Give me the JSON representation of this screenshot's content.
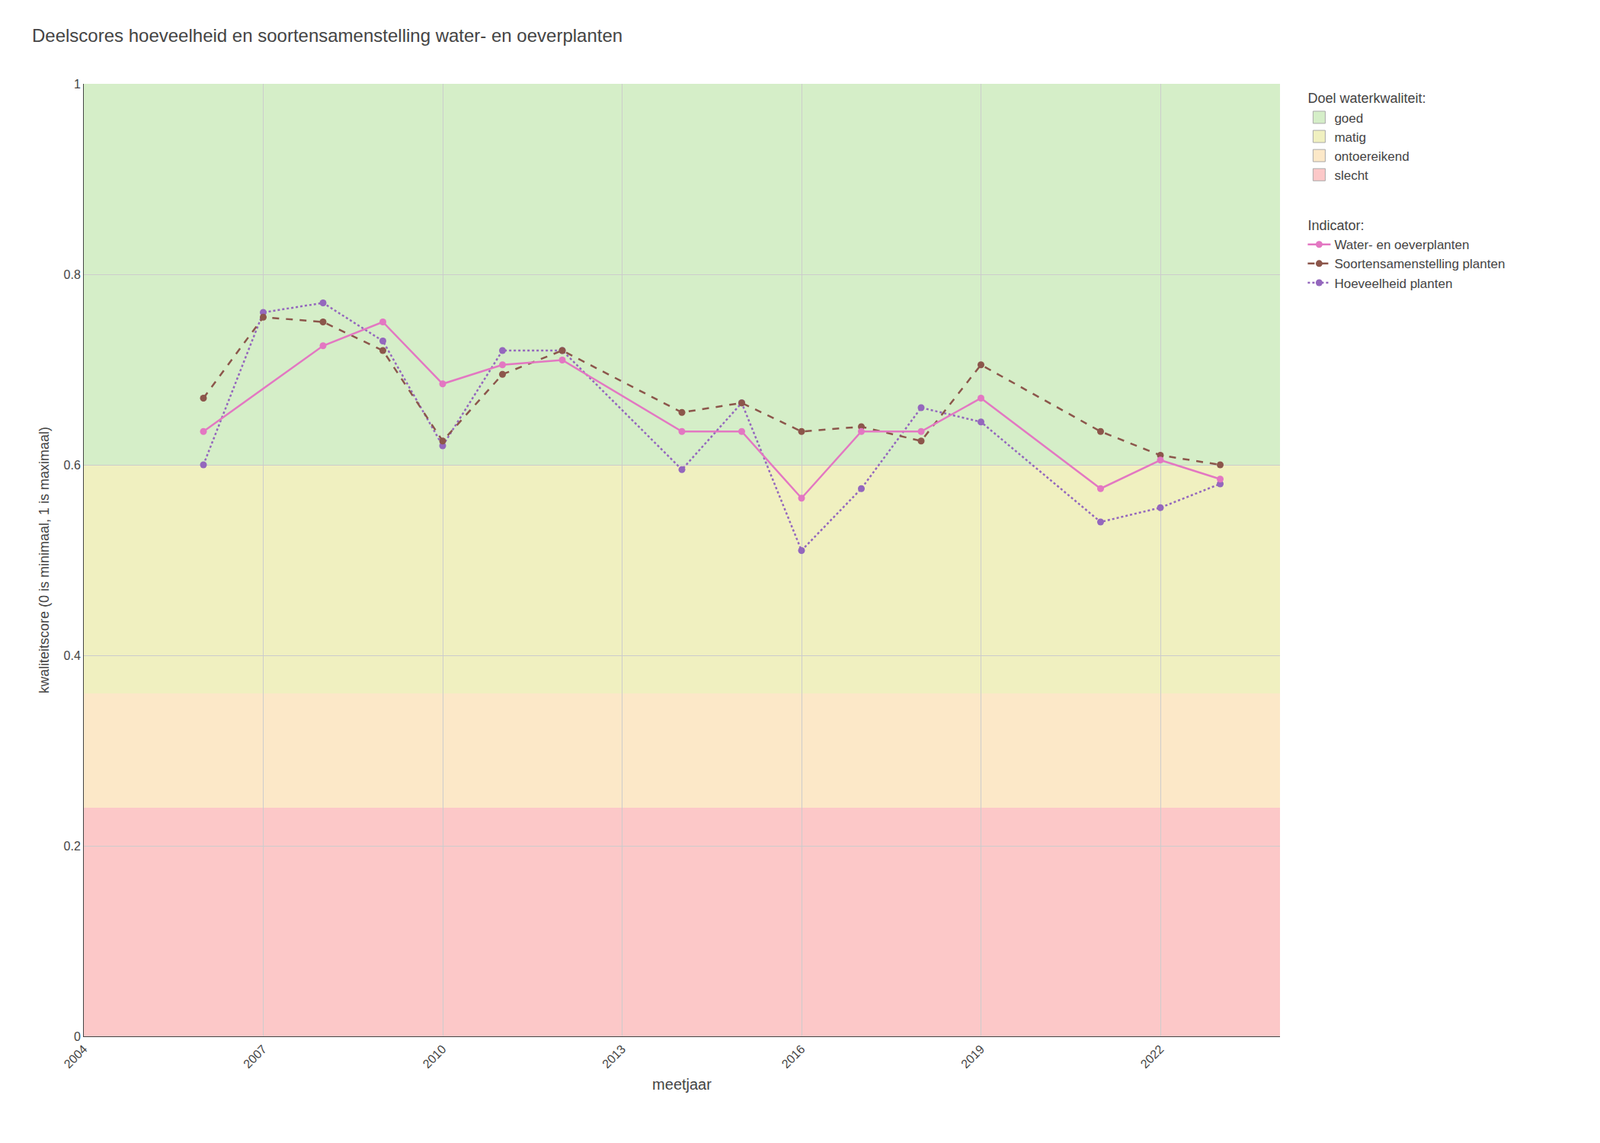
{
  "chart_data": {
    "type": "line",
    "title": "Deelscores hoeveelheid en soortensamenstelling water- en oeverplanten",
    "x_label": "meetjaar",
    "y_label": "kwaliteitscore (0 is minimaal, 1 is maximaal)",
    "xlim": [
      2004,
      2024
    ],
    "ylim": [
      0,
      1
    ],
    "xticks": [
      2004,
      2007,
      2010,
      2013,
      2016,
      2019,
      2022
    ],
    "yticks": [
      0,
      0.2,
      0.4,
      0.6,
      0.8,
      1
    ],
    "grid": true,
    "bands_title": "Doel waterkwaliteit:",
    "bands": [
      {
        "name": "goed",
        "color": "#d5eec8",
        "ymin": 0.6,
        "ymax": 1.0
      },
      {
        "name": "matig",
        "color": "#f0f0c0",
        "ymin": 0.36,
        "ymax": 0.6
      },
      {
        "name": "ontoereikend",
        "color": "#fce8c8",
        "ymin": 0.24,
        "ymax": 0.36
      },
      {
        "name": "slecht",
        "color": "#fcc8c8",
        "ymin": 0.0,
        "ymax": 0.24
      }
    ],
    "series_title": "Indicator:",
    "series": [
      {
        "name": "Hoeveelheid planten",
        "line_style": "dot",
        "marker": "circle",
        "x": [
          2006,
          2007,
          2008,
          2009,
          2010,
          2011,
          2012,
          2014,
          2015,
          2016,
          2017,
          2018,
          2019,
          2021,
          2022,
          2023
        ],
        "values": [
          0.6,
          0.76,
          0.77,
          0.73,
          0.62,
          0.72,
          0.72,
          0.595,
          0.665,
          0.51,
          0.575,
          0.66,
          0.645,
          0.54,
          0.555,
          0.58
        ]
      },
      {
        "name": "Soortensamenstelling planten",
        "line_style": "dash",
        "marker": "circle",
        "x": [
          2006,
          2007,
          2008,
          2009,
          2010,
          2011,
          2012,
          2014,
          2015,
          2016,
          2017,
          2018,
          2019,
          2021,
          2022,
          2023
        ],
        "values": [
          0.67,
          0.755,
          0.75,
          0.72,
          0.625,
          0.695,
          0.72,
          0.655,
          0.665,
          0.635,
          0.64,
          0.625,
          0.705,
          0.635,
          0.61,
          0.6
        ]
      },
      {
        "name": "Water- en oeverplanten",
        "line_style": "solid",
        "marker": "circle",
        "x": [
          2006,
          2008,
          2009,
          2010,
          2011,
          2012,
          2014,
          2015,
          2016,
          2017,
          2018,
          2019,
          2021,
          2022,
          2023
        ],
        "values": [
          0.635,
          0.725,
          0.75,
          0.685,
          0.705,
          0.71,
          0.635,
          0.635,
          0.565,
          0.635,
          0.635,
          0.67,
          0.575,
          0.605,
          0.585
        ]
      }
    ]
  }
}
